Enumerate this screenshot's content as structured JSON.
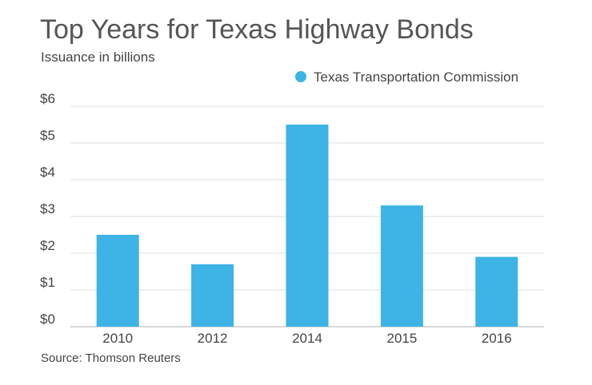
{
  "chart_data": {
    "type": "bar",
    "title": "Top Years for Texas Highway Bonds",
    "subtitle": "Issuance in billions",
    "source": "Source: Thomson Reuters",
    "categories": [
      "2010",
      "2012",
      "2014",
      "2015",
      "2016"
    ],
    "series": [
      {
        "name": "Texas Transportation Commission",
        "values": [
          2.5,
          1.7,
          5.5,
          3.3,
          1.9
        ]
      }
    ],
    "ylim": [
      0,
      6
    ],
    "yticks": [
      0,
      1,
      2,
      3,
      4,
      5,
      6
    ],
    "ytick_labels": [
      "$0",
      "$1",
      "$2",
      "$3",
      "$4",
      "$5",
      "$6"
    ],
    "grid": true,
    "legend_position": "top-right",
    "xlabel": "",
    "ylabel": ""
  },
  "colors": {
    "bar": "#3db3e6",
    "grid": "#dddddd",
    "axis": "#cccccc",
    "text": "#444444",
    "title": "#555555"
  }
}
